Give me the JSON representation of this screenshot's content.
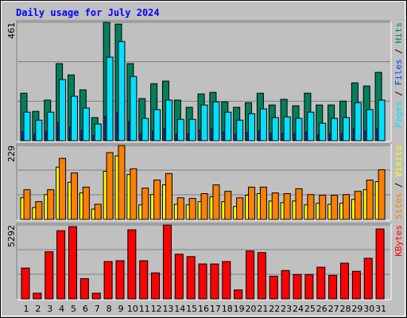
{
  "title": "Daily usage for July 2024",
  "separator": " / ",
  "categories": [
    "1",
    "2",
    "3",
    "4",
    "5",
    "6",
    "7",
    "8",
    "9",
    "10",
    "11",
    "12",
    "13",
    "14",
    "15",
    "16",
    "17",
    "18",
    "19",
    "20",
    "21",
    "22",
    "23",
    "24",
    "25",
    "26",
    "27",
    "28",
    "29",
    "30",
    "31"
  ],
  "category_colors": [
    "#000000",
    "#000000",
    "#000000",
    "#000000",
    "#000000",
    "#00805c",
    "#00805c",
    "#000000",
    "#000000",
    "#000000",
    "#000000",
    "#000000",
    "#00805c",
    "#00805c",
    "#000000",
    "#000000",
    "#000000",
    "#000000",
    "#000000",
    "#00805c",
    "#00805c",
    "#000000",
    "#000000",
    "#000000",
    "#000000",
    "#000000",
    "#00805c",
    "#00805c",
    "#000000",
    "#000000",
    "#000000"
  ],
  "chart_data": [
    {
      "type": "bar",
      "ylim": [
        0,
        461
      ],
      "yticks": [
        461
      ],
      "series": [
        {
          "name": "Hits",
          "color": "#00805c",
          "values": [
            185,
            114,
            158,
            300,
            256,
            198,
            90,
            461,
            454,
            300,
            164,
            222,
            232,
            158,
            130,
            182,
            188,
            151,
            130,
            148,
            185,
            139,
            161,
            136,
            185,
            139,
            139,
            154,
            225,
            213,
            266
          ]
        },
        {
          "name": "Files",
          "color": "#0040ff",
          "values": [
            35,
            25,
            35,
            70,
            52,
            40,
            20,
            95,
            110,
            75,
            27,
            37,
            48,
            26,
            26,
            42,
            46,
            34,
            25,
            32,
            38,
            28,
            29,
            27,
            34,
            22,
            27,
            28,
            45,
            37,
            48
          ]
        },
        {
          "name": "Pages",
          "color": "#00e0ff",
          "values": [
            111,
            80,
            111,
            238,
            173,
            127,
            65,
            325,
            386,
            250,
            87,
            121,
            158,
            83,
            83,
            139,
            151,
            111,
            80,
            105,
            124,
            90,
            93,
            87,
            111,
            68,
            87,
            90,
            148,
            121,
            158
          ]
        }
      ]
    },
    {
      "type": "bar",
      "ylim": [
        0,
        229
      ],
      "yticks": [
        229
      ],
      "series": [
        {
          "name": "Visits",
          "color": "#ffff00",
          "values": [
            67,
            37,
            77,
            162,
            115,
            82,
            32,
            149,
            197,
            139,
            45,
            77,
            107,
            47,
            45,
            55,
            70,
            55,
            40,
            75,
            80,
            57,
            52,
            57,
            45,
            50,
            47,
            50,
            62,
            92,
            117
          ]
        },
        {
          "name": "Sites",
          "color": "#ff8000",
          "values": [
            92,
            55,
            92,
            189,
            144,
            100,
            47,
            207,
            229,
            157,
            97,
            122,
            142,
            67,
            65,
            80,
            107,
            87,
            67,
            100,
            100,
            82,
            80,
            95,
            77,
            75,
            75,
            77,
            87,
            122,
            154
          ]
        }
      ]
    },
    {
      "type": "bar",
      "ylim": [
        0,
        5292
      ],
      "yticks": [
        5292
      ],
      "series": [
        {
          "name": "KBytes",
          "color": "#ff0000",
          "values": [
            2211,
            407,
            3374,
            4886,
            5176,
            1454,
            407,
            2677,
            2735,
            4945,
            2735,
            1862,
            5292,
            3200,
            3026,
            2502,
            2502,
            2677,
            640,
            3433,
            3316,
            1629,
            2036,
            1745,
            1745,
            2269,
            1687,
            2560,
            1978,
            2909,
            5004
          ]
        }
      ]
    }
  ]
}
